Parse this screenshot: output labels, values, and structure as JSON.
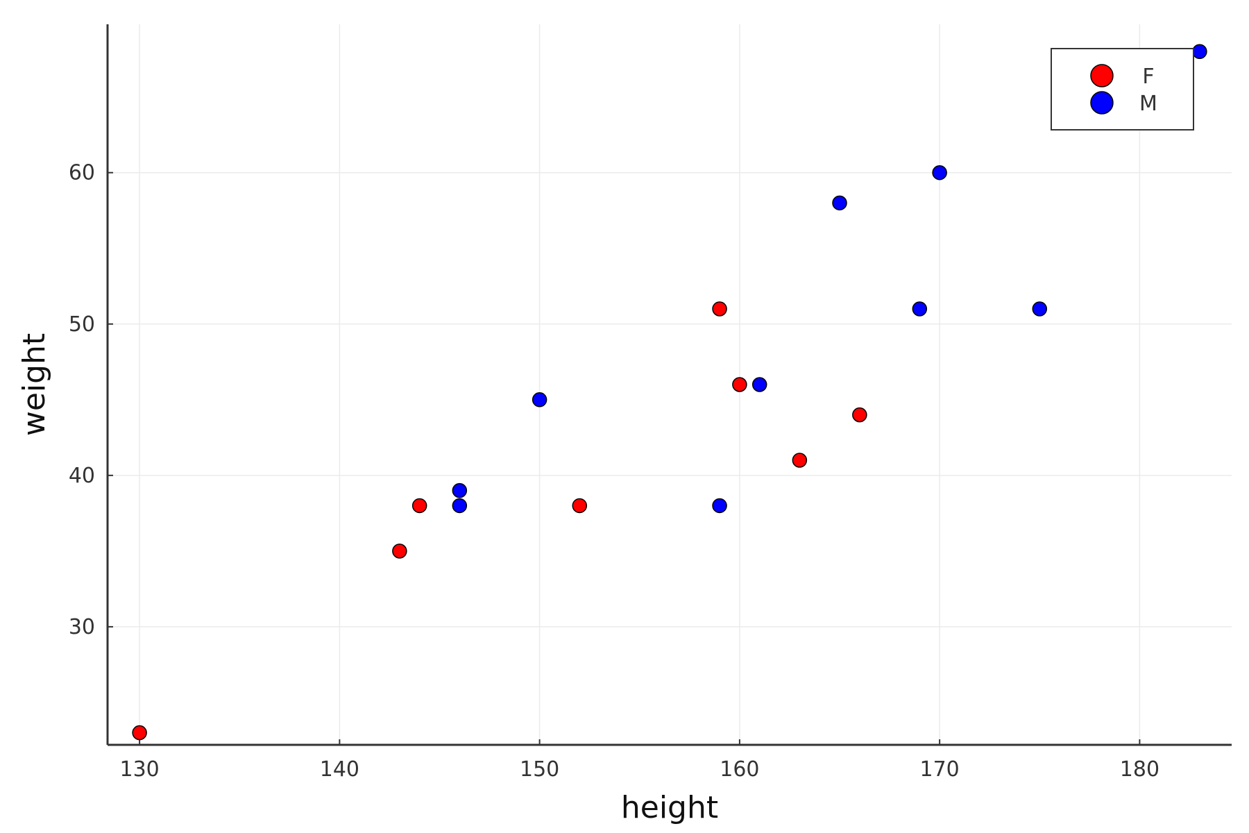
{
  "chart_data": {
    "type": "scatter",
    "title": "",
    "xlabel": "height",
    "ylabel": "weight",
    "xlim": [
      128.4,
      184.6
    ],
    "ylim": [
      22.2,
      69.8
    ],
    "xticks": [
      130,
      140,
      150,
      160,
      170,
      180
    ],
    "yticks": [
      30,
      40,
      50,
      60
    ],
    "grid": true,
    "legend_position": "top-right",
    "series": [
      {
        "name": "F",
        "color": "#ff0000",
        "points": [
          {
            "x": 130,
            "y": 23
          },
          {
            "x": 143,
            "y": 35
          },
          {
            "x": 144,
            "y": 38
          },
          {
            "x": 152,
            "y": 38
          },
          {
            "x": 159,
            "y": 51
          },
          {
            "x": 160,
            "y": 46
          },
          {
            "x": 163,
            "y": 41
          },
          {
            "x": 166,
            "y": 44
          }
        ]
      },
      {
        "name": "M",
        "color": "#0000ff",
        "points": [
          {
            "x": 146,
            "y": 39
          },
          {
            "x": 146,
            "y": 38
          },
          {
            "x": 150,
            "y": 45
          },
          {
            "x": 159,
            "y": 38
          },
          {
            "x": 161,
            "y": 46
          },
          {
            "x": 165,
            "y": 58
          },
          {
            "x": 169,
            "y": 51
          },
          {
            "x": 170,
            "y": 60
          },
          {
            "x": 175,
            "y": 51
          },
          {
            "x": 183,
            "y": 68
          }
        ]
      }
    ]
  }
}
